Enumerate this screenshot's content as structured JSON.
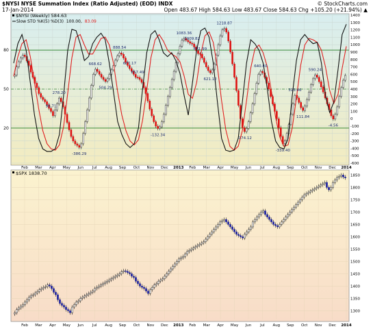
{
  "header": {
    "title": "$NYSI NYSE Summation Index (Ratio Adjusted) (EOD) INDX",
    "date": "17-Jan-2014",
    "ohlc": "Open 483.67   High 584.63   Low 483.67   Close 584.63   Chg +105.20 (+21.94%) ▲",
    "brand": "© StockCharts.com"
  },
  "panels": {
    "nysi_legend": "$NYSI (Weekly) 584.63",
    "sto_legend_prefix": "Slow STO %K(5) %D(3)",
    "sto_k_value": "100.00,",
    "sto_d_value": "83.09",
    "spx_legend": "$SPX 1838.70"
  },
  "colors": {
    "accent_red": "#dd1111",
    "stoch_k_line": "#111111",
    "stoch_d_line": "#e02020",
    "up_bar_fill": "#ffffff",
    "spx_down_fill": "#1a1f9e",
    "top_panel_bg_top": "#d8eef0",
    "top_panel_bg_bottom": "#f3ecc0",
    "bottom_panel_bg_top": "#fbf3cf",
    "bottom_panel_bg_bottom": "#f8dcc8",
    "level_line_green": "#3a8a3a"
  },
  "chart_data": [
    {
      "type": "candlestick",
      "name": "$NYSI (Weekly)",
      "period": "weekly",
      "y_axis_ticks": [
        1400,
        1300,
        1200,
        1100,
        1000,
        900,
        800,
        700,
        600,
        500,
        400,
        300,
        200,
        100,
        0,
        -100,
        -200,
        -300,
        -400,
        -500,
        -600
      ],
      "stochastic_overlay": {
        "name": "Slow STO %K(5) %D(3)",
        "levels": [
          80,
          50,
          20
        ],
        "k_last": 100.0,
        "d_last": 83.09,
        "k_series": [
          70,
          85,
          92,
          80,
          55,
          30,
          12,
          4,
          2,
          2,
          4,
          15,
          45,
          80,
          96,
          95,
          85,
          72,
          75,
          85,
          90,
          93,
          88,
          70,
          48,
          25,
          15,
          8,
          5,
          8,
          20,
          50,
          78,
          92,
          95,
          88,
          78,
          75,
          78,
          72,
          62,
          45,
          30,
          55,
          80,
          95,
          97,
          90,
          70,
          40,
          12,
          3,
          2,
          3,
          12,
          40,
          70,
          88,
          85,
          80,
          70,
          50,
          25,
          10,
          5,
          4,
          12,
          45,
          72,
          88,
          92,
          88,
          85,
          86,
          70,
          45,
          32,
          40,
          65,
          92,
          100
        ],
        "d_series": [
          60,
          75,
          85,
          88,
          75,
          55,
          35,
          18,
          8,
          4,
          3,
          7,
          21,
          47,
          74,
          90,
          92,
          84,
          77,
          77,
          83,
          89,
          90,
          84,
          70,
          48,
          30,
          18,
          10,
          7,
          11,
          26,
          49,
          74,
          88,
          92,
          87,
          80,
          77,
          75,
          71,
          60,
          46,
          43,
          55,
          77,
          91,
          94,
          86,
          67,
          41,
          19,
          6,
          3,
          6,
          18,
          41,
          66,
          81,
          84,
          78,
          67,
          48,
          28,
          13,
          6,
          7,
          20,
          43,
          68,
          84,
          89,
          88,
          86,
          80,
          67,
          49,
          39,
          46,
          66,
          83
        ]
      },
      "annotations": [
        {
          "label": "278.20",
          "value": 278.2
        },
        {
          "label": "98.71",
          "value": 98.71
        },
        {
          "label": "-386.29",
          "value": -386.29
        },
        {
          "label": "668.62",
          "value": 668.62
        },
        {
          "label": "504.29",
          "value": 504.29
        },
        {
          "label": "888.54",
          "value": 888.54
        },
        {
          "label": "677.17",
          "value": 677.17
        },
        {
          "label": "557.49",
          "value": 557.49
        },
        {
          "label": "-132.34",
          "value": -132.34
        },
        {
          "label": "1083.36",
          "value": 1083.36
        },
        {
          "label": "1009.82",
          "value": 1009.82
        },
        {
          "label": "871.99",
          "value": 871.99
        },
        {
          "label": "621.12",
          "value": 621.12
        },
        {
          "label": "1218.87",
          "value": 1218.87
        },
        {
          "label": "-174.12",
          "value": -174.12
        },
        {
          "label": "640.40",
          "value": 640.4
        },
        {
          "label": "-339.40",
          "value": -339.4
        },
        {
          "label": "315.46",
          "value": 315.46
        },
        {
          "label": "111.84",
          "value": 111.84
        },
        {
          "label": "590.24",
          "value": 590.24
        },
        {
          "label": "-4.56",
          "value": -4.56
        }
      ],
      "series": [
        {
          "name": "$NYSI",
          "close": [
            590,
            700,
            770,
            820,
            860,
            840,
            780,
            720,
            630,
            560,
            480,
            420,
            340,
            290,
            260,
            230,
            190,
            140,
            98.71,
            40,
            120,
            200,
            278.2,
            230,
            160,
            60,
            -50,
            -150,
            -240,
            -300,
            -340,
            -360,
            -386.29,
            -340,
            -200,
            -40,
            120,
            280,
            450,
            600,
            668.62,
            640,
            600,
            560,
            530,
            504.29,
            540,
            600,
            660,
            720,
            790,
            850,
            888.54,
            870,
            820,
            760,
            720,
            677.17,
            640,
            600,
            560,
            557.49,
            530,
            490,
            420,
            340,
            240,
            130,
            40,
            -40,
            -100,
            -132.34,
            -110,
            -40,
            60,
            180,
            300,
            420,
            530,
            640,
            760,
            880,
            980,
            1060,
            1083.36,
            1060,
            1040,
            1020,
            1009.82,
            970,
            920,
            880,
            871.99,
            820,
            760,
            700,
            650,
            621.12,
            660,
            740,
            860,
            1000,
            1120,
            1200,
            1218.87,
            1170,
            1050,
            900,
            740,
            560,
            380,
            180,
            0,
            -120,
            -174.12,
            -130,
            -40,
            80,
            200,
            340,
            480,
            600,
            640.4,
            620,
            560,
            480,
            400,
            300,
            200,
            100,
            0,
            -120,
            -240,
            -339.4,
            -300,
            -200,
            -80,
            60,
            200,
            315.46,
            280,
            220,
            150,
            111.84,
            170,
            260,
            360,
            460,
            540,
            590.24,
            560,
            500,
            430,
            360,
            280,
            200,
            120,
            40,
            -4.56,
            60,
            160,
            300,
            420,
            520,
            584.63
          ]
        }
      ],
      "x_tick_labels": [
        "Feb",
        "Mar",
        "Apr",
        "May",
        "Jun",
        "Jul",
        "Aug",
        "Sep",
        "Oct",
        "Nov",
        "Dec",
        "2013",
        "Feb",
        "Mar",
        "Apr",
        "May",
        "Jun",
        "Jul",
        "Aug",
        "Sep",
        "Oct",
        "Nov",
        "Dec",
        "2014"
      ]
    },
    {
      "type": "candlestick",
      "name": "$SPX",
      "period": "daily-weekly",
      "last": 1838.7,
      "y_axis_ticks": [
        1850,
        1800,
        1750,
        1700,
        1650,
        1600,
        1550,
        1500,
        1450,
        1400,
        1350,
        1300
      ],
      "series": [
        {
          "name": "$SPX",
          "close": [
            1292,
            1305,
            1312,
            1318,
            1325,
            1335,
            1345,
            1355,
            1362,
            1365,
            1372,
            1378,
            1385,
            1390,
            1395,
            1398,
            1405,
            1400,
            1390,
            1375,
            1365,
            1345,
            1330,
            1322,
            1315,
            1305,
            1300,
            1292,
            1315,
            1325,
            1335,
            1340,
            1350,
            1355,
            1360,
            1365,
            1370,
            1375,
            1380,
            1390,
            1395,
            1400,
            1405,
            1410,
            1415,
            1420,
            1425,
            1430,
            1435,
            1440,
            1445,
            1450,
            1458,
            1462,
            1460,
            1455,
            1450,
            1440,
            1435,
            1420,
            1410,
            1400,
            1395,
            1390,
            1380,
            1370,
            1385,
            1395,
            1405,
            1410,
            1420,
            1425,
            1430,
            1440,
            1450,
            1460,
            1470,
            1480,
            1490,
            1500,
            1510,
            1515,
            1520,
            1530,
            1540,
            1545,
            1550,
            1555,
            1560,
            1565,
            1570,
            1575,
            1580,
            1590,
            1600,
            1610,
            1620,
            1630,
            1640,
            1650,
            1660,
            1665,
            1670,
            1660,
            1650,
            1640,
            1630,
            1620,
            1610,
            1605,
            1600,
            1595,
            1610,
            1620,
            1630,
            1640,
            1660,
            1670,
            1680,
            1690,
            1700,
            1705,
            1690,
            1680,
            1670,
            1660,
            1650,
            1645,
            1640,
            1650,
            1660,
            1670,
            1680,
            1690,
            1700,
            1710,
            1720,
            1730,
            1740,
            1750,
            1760,
            1770,
            1775,
            1780,
            1785,
            1790,
            1795,
            1800,
            1805,
            1810,
            1815,
            1820,
            1800,
            1790,
            1800,
            1820,
            1830,
            1840,
            1845,
            1850,
            1842,
            1838.7
          ]
        }
      ],
      "x_tick_labels": [
        "Feb",
        "Mar",
        "Apr",
        "May",
        "Jun",
        "Jul",
        "Aug",
        "Sep",
        "Oct",
        "Nov",
        "Dec",
        "2013",
        "Feb",
        "Mar",
        "Apr",
        "May",
        "Jun",
        "Jul",
        "Aug",
        "Sep",
        "Oct",
        "Nov",
        "Dec",
        "2014"
      ]
    }
  ]
}
